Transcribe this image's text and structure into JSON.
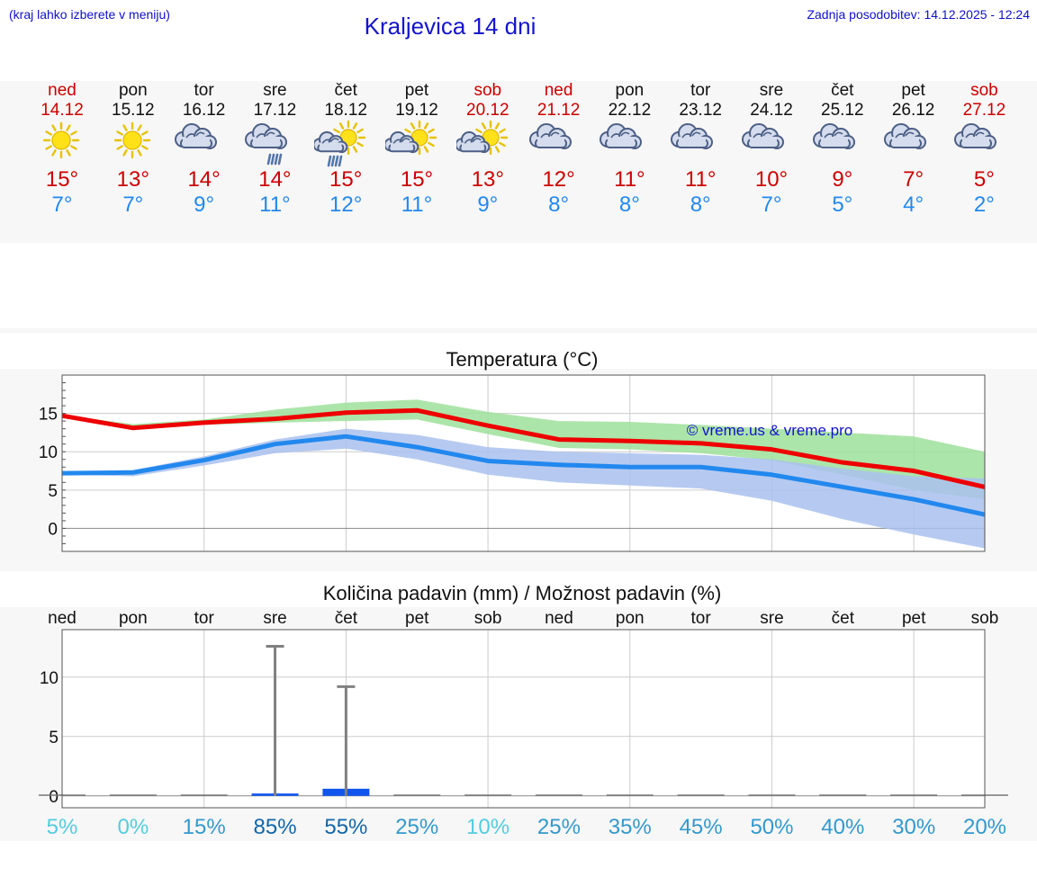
{
  "header": {
    "hint": "(kraj lahko izberete v meniju)",
    "title": "Kraljevica 14 dni",
    "updated": "Zadnja posodobitev: 14.12.2025 - 12:24"
  },
  "days": [
    {
      "name": "ned",
      "date": "14.12",
      "icon": "sun-icon",
      "tmax": "15°",
      "tmin": "7°",
      "weekend": true
    },
    {
      "name": "pon",
      "date": "15.12",
      "icon": "sun-icon",
      "tmax": "13°",
      "tmin": "7°",
      "weekend": false
    },
    {
      "name": "tor",
      "date": "16.12",
      "icon": "cloud-icon",
      "tmax": "14°",
      "tmin": "9°",
      "weekend": false
    },
    {
      "name": "sre",
      "date": "17.12",
      "icon": "cloud-rain-icon",
      "tmax": "14°",
      "tmin": "11°",
      "weekend": false
    },
    {
      "name": "čet",
      "date": "18.12",
      "icon": "sun-cloud-rain-icon",
      "tmax": "15°",
      "tmin": "12°",
      "weekend": false
    },
    {
      "name": "pet",
      "date": "19.12",
      "icon": "sun-cloud-icon",
      "tmax": "15°",
      "tmin": "11°",
      "weekend": false
    },
    {
      "name": "sob",
      "date": "20.12",
      "icon": "sun-cloud-icon",
      "tmax": "13°",
      "tmin": "9°",
      "weekend": true
    },
    {
      "name": "ned",
      "date": "21.12",
      "icon": "cloud-icon",
      "tmax": "12°",
      "tmin": "8°",
      "weekend": true
    },
    {
      "name": "pon",
      "date": "22.12",
      "icon": "cloud-icon",
      "tmax": "11°",
      "tmin": "8°",
      "weekend": false
    },
    {
      "name": "tor",
      "date": "23.12",
      "icon": "cloud-icon",
      "tmax": "11°",
      "tmin": "8°",
      "weekend": false
    },
    {
      "name": "sre",
      "date": "24.12",
      "icon": "cloud-icon",
      "tmax": "10°",
      "tmin": "7°",
      "weekend": false
    },
    {
      "name": "čet",
      "date": "25.12",
      "icon": "cloud-icon",
      "tmax": "9°",
      "tmin": "5°",
      "weekend": false
    },
    {
      "name": "pet",
      "date": "26.12",
      "icon": "cloud-icon",
      "tmax": "7°",
      "tmin": "4°",
      "weekend": false
    },
    {
      "name": "sob",
      "date": "27.12",
      "icon": "cloud-icon",
      "tmax": "5°",
      "tmin": "2°",
      "weekend": true
    }
  ],
  "colors": {
    "tmax": "#ee0000",
    "tmin": "#2288ee",
    "tmax_band": "#9ee09a",
    "tmin_band": "#a9c1ee",
    "precip_bar": "#1155ee",
    "whisker": "#808080",
    "pct_low": "#55ccdd",
    "pct_mid": "#3399cc",
    "pct_high": "#1166aa"
  },
  "chart_data": [
    {
      "type": "line",
      "title": "Temperatura (°C)",
      "watermark": "© vreme.us & vreme.pro",
      "ylim": [
        -3,
        20
      ],
      "yticks": [
        0,
        5,
        10,
        15
      ],
      "x": [
        0,
        1,
        2,
        3,
        4,
        5,
        6,
        7,
        8,
        9,
        10,
        11,
        12,
        13
      ],
      "series": [
        {
          "name": "tmax",
          "values": [
            14.7,
            13.1,
            13.8,
            14.3,
            15.1,
            15.4,
            13.4,
            11.6,
            11.4,
            11.1,
            10.3,
            8.6,
            7.5,
            5.4
          ],
          "band_low": [
            14.7,
            13.3,
            13.5,
            13.8,
            14.0,
            14.2,
            12.3,
            10.5,
            10.3,
            9.8,
            8.9,
            7.0,
            5.0,
            3.8
          ],
          "band_high": [
            14.8,
            13.6,
            14.2,
            15.5,
            16.4,
            16.8,
            15.2,
            14.0,
            13.9,
            13.5,
            13.0,
            12.5,
            12.0,
            10.0
          ]
        },
        {
          "name": "tmin",
          "values": [
            7.2,
            7.3,
            8.9,
            11.0,
            12.0,
            10.6,
            8.8,
            8.3,
            8.0,
            8.0,
            7.0,
            5.4,
            3.8,
            1.8
          ],
          "band_low": [
            7.0,
            6.8,
            8.2,
            9.8,
            10.4,
            9.0,
            7.0,
            6.0,
            5.6,
            5.2,
            3.6,
            1.2,
            -0.8,
            -2.6
          ],
          "band_high": [
            7.4,
            7.6,
            9.4,
            11.6,
            13.0,
            12.2,
            10.6,
            10.0,
            9.8,
            9.6,
            9.0,
            7.8,
            6.8,
            6.5
          ]
        }
      ]
    },
    {
      "type": "bar",
      "title": "Količina padavin (mm) / Možnost padavin (%)",
      "ylim": [
        -1,
        14
      ],
      "yticks": [
        0,
        5,
        10
      ],
      "categories": [
        "ned",
        "pon",
        "tor",
        "sre",
        "čet",
        "pet",
        "sob",
        "ned",
        "pon",
        "tor",
        "sre",
        "čet",
        "pet",
        "sob"
      ],
      "values": [
        0,
        0,
        0,
        0.2,
        0.6,
        0,
        0,
        0,
        0,
        0,
        0,
        0,
        0,
        0
      ],
      "whisker_max": [
        0,
        0,
        0,
        12.6,
        9.2,
        0,
        0,
        0,
        0,
        0,
        0,
        0,
        0,
        0
      ],
      "probability": [
        "5%",
        "0%",
        "15%",
        "85%",
        "55%",
        "25%",
        "10%",
        "25%",
        "35%",
        "45%",
        "50%",
        "40%",
        "30%",
        "20%"
      ],
      "probability_values": [
        5,
        0,
        15,
        85,
        55,
        25,
        10,
        25,
        35,
        45,
        50,
        40,
        30,
        20
      ]
    }
  ]
}
